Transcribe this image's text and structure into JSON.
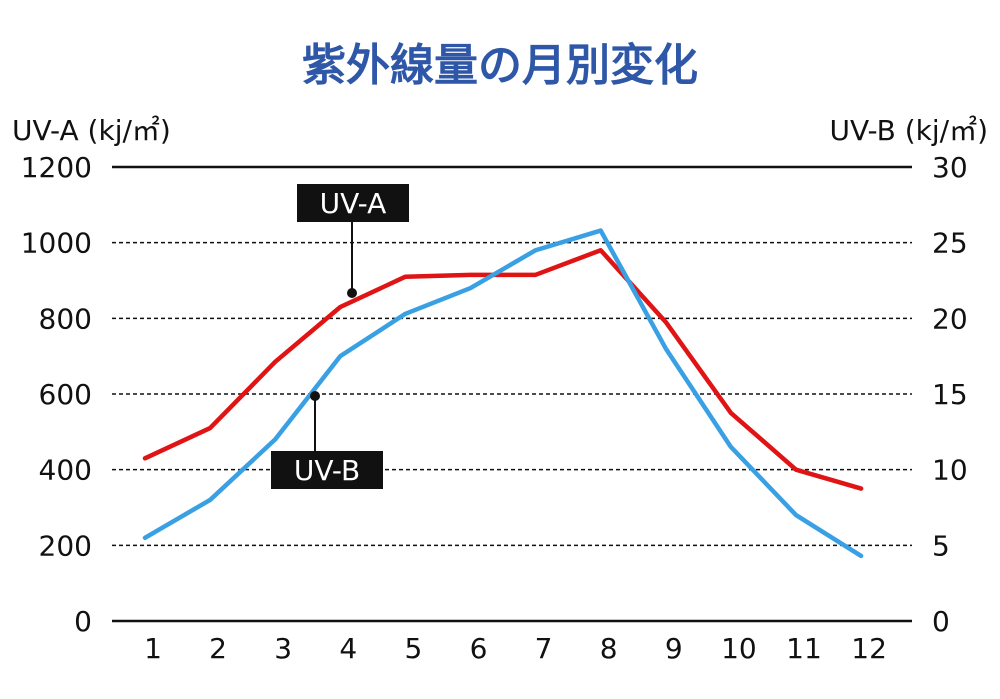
{
  "chart_data": {
    "type": "line",
    "title": "紫外線量の月別変化",
    "y_left_label": "UV-A (kj/㎡)",
    "y_right_label": "UV-B (kj/㎡)",
    "categories": [
      "1",
      "2",
      "3",
      "4",
      "5",
      "6",
      "7",
      "8",
      "9",
      "10",
      "11",
      "12"
    ],
    "y_left_ticks": [
      "0",
      "200",
      "400",
      "600",
      "800",
      "1000",
      "1200"
    ],
    "y_right_ticks": [
      "0",
      "5",
      "10",
      "15",
      "20",
      "25",
      "30"
    ],
    "ylim_left": [
      0,
      1200
    ],
    "ylim_right": [
      0,
      30
    ],
    "grid": "horizontal-dashed",
    "series": [
      {
        "name": "UV-A",
        "axis": "left",
        "color": "#e01414",
        "values": [
          430,
          510,
          685,
          830,
          910,
          915,
          915,
          980,
          790,
          550,
          400,
          350
        ]
      },
      {
        "name": "UV-B",
        "axis": "right",
        "color": "#3aa0e4",
        "values": [
          5.5,
          8,
          12,
          17.5,
          20.3,
          22,
          24.5,
          25.8,
          18,
          11.5,
          7,
          4.3
        ]
      }
    ]
  }
}
